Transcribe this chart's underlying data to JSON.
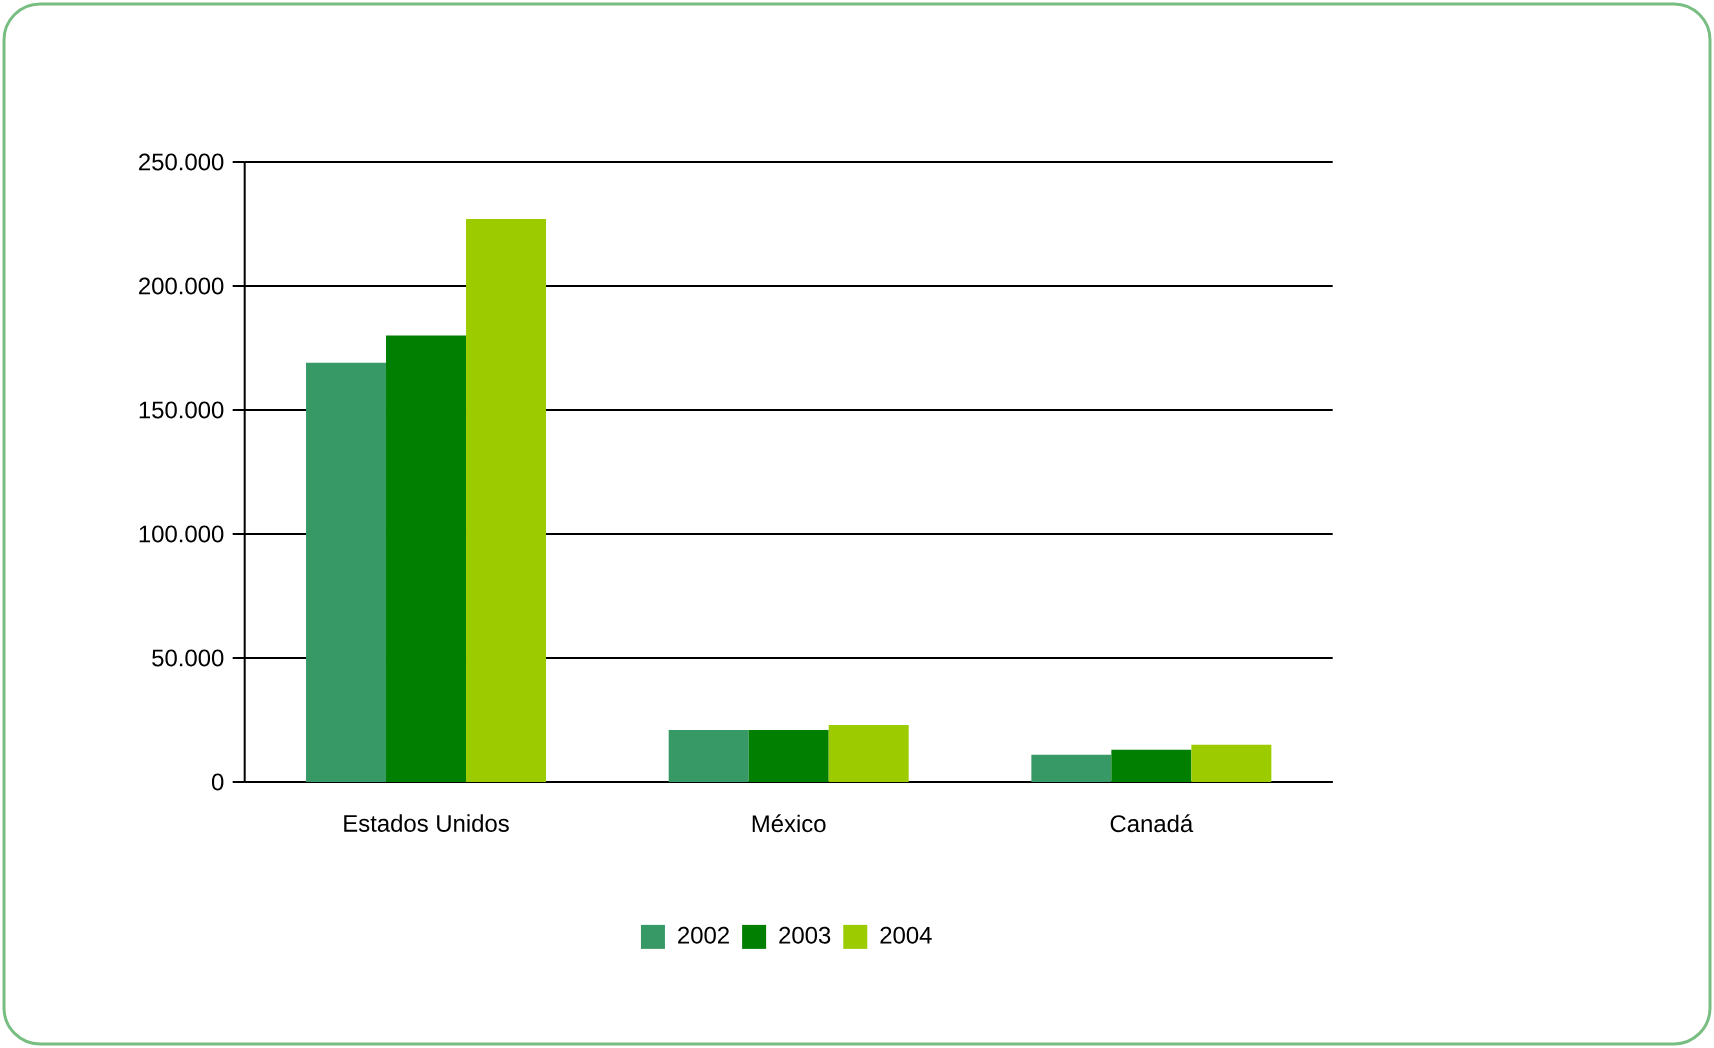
{
  "chart_data": {
    "type": "bar",
    "categories": [
      "Estados Unidos",
      "México",
      "Canadá"
    ],
    "series": [
      {
        "name": "2002",
        "color": "#379966",
        "values": [
          169000,
          21000,
          11000
        ]
      },
      {
        "name": "2003",
        "color": "#007f00",
        "values": [
          180000,
          21000,
          13000
        ]
      },
      {
        "name": "2004",
        "color": "#9ccc00",
        "values": [
          227000,
          23000,
          15000
        ]
      }
    ],
    "ylim": [
      0,
      250000
    ],
    "yticks": [
      {
        "value": 0,
        "label": "0"
      },
      {
        "value": 50000,
        "label": "50.000"
      },
      {
        "value": 100000,
        "label": "100.000"
      },
      {
        "value": 150000,
        "label": "150.000"
      },
      {
        "value": 200000,
        "label": "200.000"
      },
      {
        "value": 250000,
        "label": "250.000"
      }
    ],
    "grid": "y",
    "legend": "bottom"
  }
}
